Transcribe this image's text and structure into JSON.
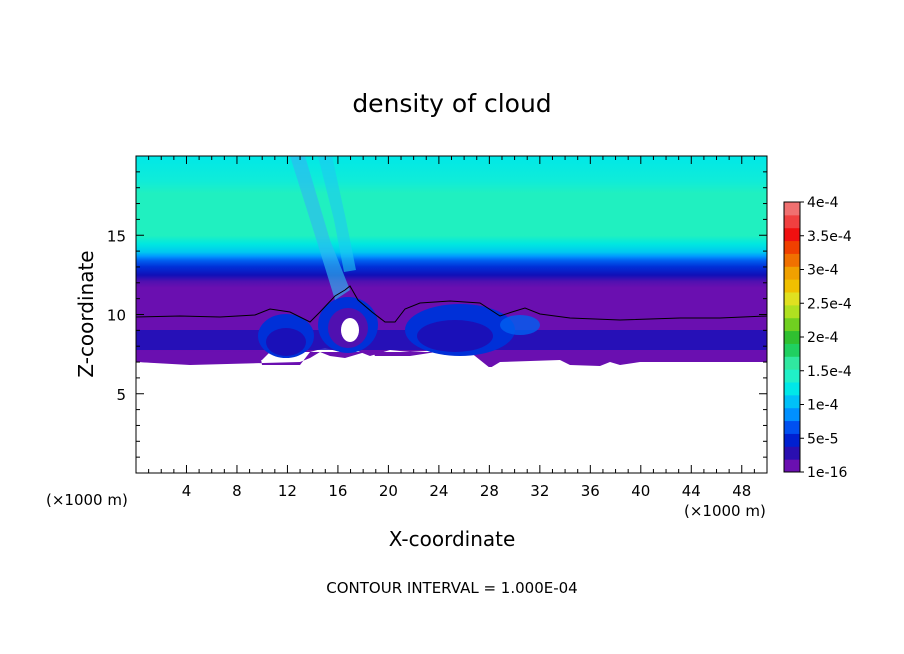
{
  "chart_data": {
    "type": "heatmap",
    "title": "density of cloud",
    "xlabel": "X-coordinate",
    "ylabel": "Z-coordinate",
    "x_unit_left": "(×1000 m)",
    "x_unit_right": "(×1000 m)",
    "footer": "CONTOUR INTERVAL = 1.000E-04",
    "xlim": [
      0,
      50
    ],
    "ylim": [
      0,
      20
    ],
    "x_ticks": [
      4,
      8,
      12,
      16,
      20,
      24,
      28,
      32,
      36,
      40,
      44,
      48
    ],
    "x_tick_labels": [
      "4",
      "8",
      "12",
      "16",
      "20",
      "24",
      "28",
      "32",
      "36",
      "40",
      "44",
      "48"
    ],
    "y_ticks": [
      5,
      10,
      15
    ],
    "y_tick_labels": [
      "5",
      "10",
      "15"
    ],
    "colorbar": {
      "tick_labels": [
        "1e-16",
        "5e-5",
        "1e-4",
        "1.5e-4",
        "2e-4",
        "2.5e-4",
        "3e-4",
        "3.5e-4",
        "4e-4"
      ],
      "colors": [
        "#6a0fb0",
        "#2a0fb0",
        "#0020d0",
        "#0050f0",
        "#0090ff",
        "#00c0f8",
        "#00e8e8",
        "#20f0c8",
        "#30e8a0",
        "#20d060",
        "#30c030",
        "#70d020",
        "#b0e020",
        "#e0e020",
        "#f0c000",
        "#f0a000",
        "#f07000",
        "#f04000",
        "#f01010",
        "#f04040",
        "#f07070"
      ]
    },
    "contour_line_value": "1e-16",
    "fields": {
      "background_color": "#00f0e0",
      "band_color": "#20f0b8",
      "band_z_range": [
        13,
        17.5
      ]
    }
  }
}
